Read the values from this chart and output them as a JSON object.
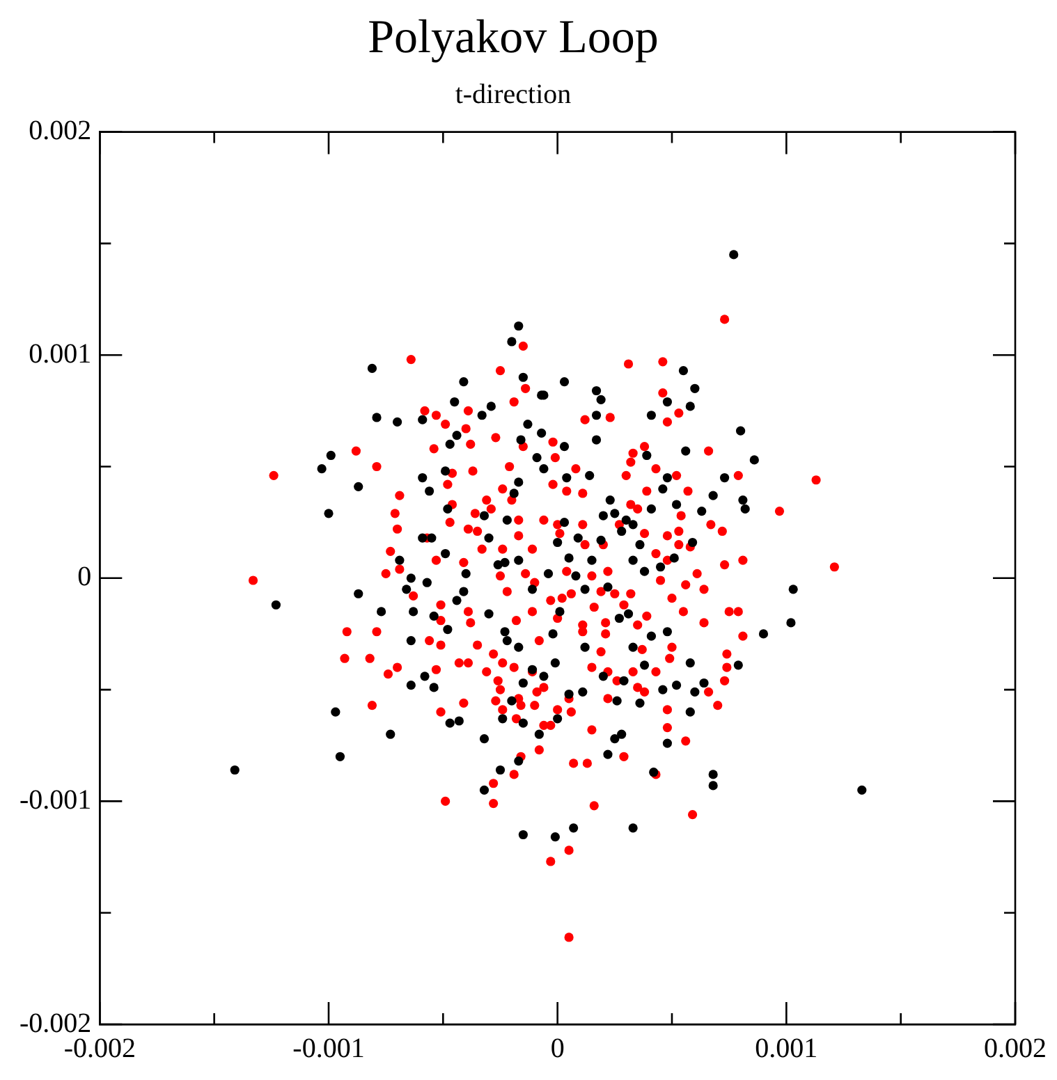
{
  "chart_data": {
    "type": "scatter",
    "title": "Polyakov Loop",
    "subtitle": "t-direction",
    "marker": "circle",
    "xlim": [
      -0.002,
      0.002
    ],
    "ylim": [
      -0.002,
      0.002
    ],
    "xticks": [
      -0.002,
      {
        "value": -0.0015,
        "label": null
      },
      -0.001,
      {
        "value": -0.0005,
        "label": null
      },
      0,
      {
        "value": 0.0005,
        "label": null
      },
      0.001,
      {
        "value": 0.0015,
        "label": null
      },
      0.002
    ],
    "yticks": [
      -0.002,
      {
        "value": -0.0015,
        "label": null
      },
      -0.001,
      {
        "value": -0.0005,
        "label": null
      },
      0,
      {
        "value": 0.0005,
        "label": null
      },
      0.001,
      {
        "value": 0.0015,
        "label": null
      },
      0.002
    ],
    "series": [
      {
        "color": "#000000",
        "x": [
          0.00077,
          -0.00017,
          -0.0002,
          -0.00081,
          -0.00041,
          -0.00015,
          -0.00045,
          -0.00029,
          -0.00033,
          -0.00059,
          -0.0007,
          -0.00079,
          -0.00099,
          -0.00103,
          -0.00087,
          -0.001,
          -0.00044,
          -0.00047,
          -0.00059,
          -0.00056,
          -0.00049,
          -0.00048,
          -7e-05,
          -6e-05,
          -0.00013,
          -0.00016,
          -7e-05,
          -9e-05,
          -6e-05,
          -0.00017,
          -0.00019,
          -0.00032,
          -0.00022,
          -0.0003,
          -0.00059,
          -0.00055,
          -0.00049,
          -0.00069,
          -0.00064,
          -0.0004,
          -0.00026,
          -0.00023,
          -0.00017,
          0.00055,
          0.0006,
          0.00058,
          3e-05,
          0.00017,
          0.00019,
          0.00017,
          0.00041,
          0.00048,
          0.0008,
          0.00086,
          0.00073,
          0.00068,
          0.00081,
          0.00082,
          0.00063,
          0.00056,
          0.00046,
          0.00048,
          0.00039,
          0.00052,
          0.00041,
          0.00023,
          0.00025,
          0.0002,
          0.0003,
          0.00033,
          0.00028,
          0.00019,
          0.00036,
          0.00059,
          0.00051,
          0.00045,
          0.00033,
          0.00038,
          0.00103,
          0.00017,
          3e-05,
          4e-05,
          0.00014,
          9e-05,
          5e-05,
          3e-05,
          0.00015,
          0.00102,
          0.0009,
          0.00079,
          0.00058,
          0.00048,
          0.00025,
          0.00028,
          0.00022,
          0.00033,
          7e-05,
          -1e-05,
          0.00042,
          0.00068,
          0.00068,
          0.00133,
          0.00046,
          0.00052,
          0.0006,
          0.00064,
          0.00058,
          0.00041,
          0.00048,
          0.00033,
          0.00038,
          0.00026,
          0.00036,
          0.00012,
          0.0002,
          0.00029,
          0.00011,
          5e-05,
          0,
          0.00027,
          0.00031,
          -0.00141,
          -0.00095,
          -0.00097,
          -0.00073,
          -0.00123,
          -0.00087,
          -0.00077,
          -0.00063,
          -0.00064,
          -0.00064,
          -0.00054,
          -0.00058,
          -0.00047,
          -0.00043,
          -0.00032,
          -0.00015,
          -0.00032,
          -0.00025,
          -0.00017,
          -0.00024,
          -8e-05,
          -0.0002,
          -0.00015,
          -0.00015,
          -0.00011,
          -6e-05,
          -0.00017,
          -0.00022,
          -0.00023,
          -0.0003,
          -0.00048,
          -0.00054,
          -0.00041,
          -0.00044,
          -0.00066,
          -0.00057,
          -1e-05,
          -2e-05,
          1e-05,
          -4e-05,
          -0.00011,
          0.00012,
          0.00022,
          8e-05,
          0
        ],
        "values": [
          0.00145,
          0.00113,
          0.00106,
          0.00094,
          0.00088,
          0.0009,
          0.00079,
          0.00077,
          0.00073,
          0.00071,
          0.0007,
          0.00072,
          0.00055,
          0.00049,
          0.00041,
          0.00029,
          0.00064,
          0.0006,
          0.00045,
          0.00039,
          0.00048,
          0.00031,
          0.00082,
          0.00082,
          0.00069,
          0.00062,
          0.00065,
          0.00054,
          0.00049,
          0.00043,
          0.00038,
          0.00028,
          0.00026,
          0.00018,
          0.00018,
          0.00018,
          0.00011,
          8e-05,
          0,
          2e-05,
          6e-05,
          7e-05,
          8e-05,
          0.00093,
          0.00085,
          0.00077,
          0.00088,
          0.00084,
          0.0008,
          0.00073,
          0.00073,
          0.00079,
          0.00066,
          0.00053,
          0.00045,
          0.00037,
          0.00035,
          0.00031,
          0.0003,
          0.00057,
          0.0004,
          0.00045,
          0.00055,
          0.00033,
          0.00031,
          0.00035,
          0.00029,
          0.00028,
          0.00026,
          0.00024,
          0.00021,
          0.00017,
          0.00015,
          0.00016,
          9e-05,
          5e-05,
          8e-05,
          3e-05,
          -5e-05,
          0.00062,
          0.00059,
          0.00045,
          0.00046,
          0.00018,
          9e-05,
          0.00025,
          8e-05,
          -0.0002,
          -0.00025,
          -0.00039,
          -0.0006,
          -0.00074,
          -0.00072,
          -0.0007,
          -0.00079,
          -0.00112,
          -0.00112,
          -0.00116,
          -0.00087,
          -0.00088,
          -0.00093,
          -0.00095,
          -0.0005,
          -0.00048,
          -0.00051,
          -0.00047,
          -0.00038,
          -0.00026,
          -0.00024,
          -0.00031,
          -0.00039,
          -0.00055,
          -0.00056,
          -0.00031,
          -0.00044,
          -0.00046,
          -0.00051,
          -0.00052,
          -0.00063,
          -0.00018,
          -0.00016,
          -0.00086,
          -0.0008,
          -0.0006,
          -0.0007,
          -0.00012,
          -7e-05,
          -0.00015,
          -0.00015,
          -0.00028,
          -0.00048,
          -0.00049,
          -0.00044,
          -0.00065,
          -0.00064,
          -0.00072,
          -0.00115,
          -0.00095,
          -0.00086,
          -0.00082,
          -0.00063,
          -0.0007,
          -0.00055,
          -0.00065,
          -0.00047,
          -0.00041,
          -0.00044,
          -0.00031,
          -0.00028,
          -0.00024,
          -0.00016,
          -0.00023,
          -0.00017,
          -6e-05,
          -0.0001,
          -5e-05,
          -2e-05,
          -0.00038,
          -0.00025,
          -0.00015,
          2e-05,
          -5e-05,
          -5e-05,
          -4e-05,
          1e-05,
          0.00016
        ]
      },
      {
        "color": "#ff0000",
        "x": [
          -0.00064,
          -0.00015,
          -0.00025,
          -0.00014,
          -0.00019,
          -0.00058,
          -0.00053,
          -0.00039,
          -0.00049,
          -0.0004,
          -0.00054,
          -0.00038,
          -0.00027,
          -0.00015,
          -2e-05,
          -0.00088,
          -0.00079,
          -0.00124,
          -0.00046,
          -0.00037,
          -0.00021,
          -1e-05,
          -0.00048,
          -0.00069,
          -0.00071,
          -0.0007,
          -0.00046,
          -0.00047,
          -0.00031,
          -0.00036,
          -0.00029,
          -0.00024,
          -0.0002,
          -2e-05,
          -0.00017,
          -0.00017,
          -6e-05,
          -0.00039,
          -0.00035,
          -0.00057,
          -0.00073,
          -0.00069,
          -0.00075,
          -0.00053,
          -0.00041,
          -0.00033,
          -0.00024,
          -0.00011,
          -0.00025,
          -0.00133,
          -0.00014,
          0.00073,
          0.00031,
          0.00046,
          0.00046,
          0.00053,
          0.00048,
          0.00012,
          0.00023,
          0.00033,
          0.00032,
          0.00038,
          0.00066,
          0.00079,
          0.00113,
          0.00097,
          0.00121,
          0.00043,
          0.00052,
          0.0003,
          8e-05,
          4e-05,
          0.00011,
          0.00039,
          0.00057,
          0.00032,
          0.00035,
          0.00054,
          0.00067,
          0.00072,
          0.00048,
          0.00053,
          0.00038,
          0.00027,
          0.0002,
          0.00011,
          0.00012,
          0,
          1e-05,
          0.00043,
          0.00053,
          0.00058,
          0.00048,
          0.00073,
          0.00081,
          0.00061,
          0.00022,
          0.00015,
          4e-05,
          -0.00092,
          -0.00093,
          -0.00079,
          -0.00082,
          -0.00074,
          -0.0007,
          -0.00081,
          -0.00049,
          -0.00051,
          -0.00041,
          -0.00053,
          -0.00043,
          -0.00039,
          -0.00056,
          -0.00051,
          -0.00051,
          -0.00063,
          -0.00051,
          -0.00039,
          -0.00038,
          -0.00035,
          -0.00031,
          -0.00028,
          -0.00026,
          -0.00025,
          -0.00027,
          -0.00024,
          -0.00024,
          -0.00018,
          -0.00016,
          -0.00017,
          -0.00019,
          -0.0001,
          -9e-05,
          -6e-05,
          -0.00011,
          -8e-05,
          -0.00011,
          -0.00018,
          -0.00022,
          -0.0001,
          -3e-05,
          0,
          0,
          -6e-05,
          -3e-05,
          -8e-05,
          -0.00016,
          -0.00019,
          -0.00028,
          -0.00028,
          -3e-05,
          0.00045,
          0.00056,
          0.00064,
          0.0005,
          0.00055,
          0.00075,
          0.00079,
          0.00081,
          0.00064,
          0.00039,
          0.00035,
          0.00029,
          0.00032,
          0.00025,
          0.00019,
          0.00016,
          0.00021,
          0.00021,
          0.00019,
          0.00011,
          0.00011,
          6e-05,
          2e-05,
          0.00015,
          0.00022,
          0.00026,
          0.00033,
          0.00037,
          0.00043,
          0.00035,
          0.00038,
          0.00022,
          0.0005,
          0.00049,
          0.00074,
          0.00074,
          0.00073,
          0.00066,
          0.0007,
          0.00048,
          0.00048,
          0.00056,
          0.00015,
          0.00029,
          7e-05,
          0.00013,
          0.00043,
          0.00016,
          0.00059,
          5e-05,
          5e-05,
          5e-05,
          6e-05
        ],
        "values": [
          0.00098,
          0.00104,
          0.00093,
          0.00085,
          0.00079,
          0.00075,
          0.00073,
          0.00075,
          0.00069,
          0.00067,
          0.00058,
          0.0006,
          0.00063,
          0.00059,
          0.00061,
          0.00057,
          0.0005,
          0.00046,
          0.00047,
          0.00048,
          0.0005,
          0.00054,
          0.00042,
          0.00037,
          0.00029,
          0.00022,
          0.00033,
          0.00025,
          0.00035,
          0.00029,
          0.00031,
          0.0004,
          0.00035,
          0.00042,
          0.00026,
          0.00019,
          0.00026,
          0.00022,
          0.00021,
          0.00018,
          0.00012,
          4e-05,
          2e-05,
          8e-05,
          7e-05,
          0.00013,
          0.00013,
          0.00013,
          1e-05,
          -1e-05,
          2e-05,
          0.00116,
          0.00096,
          0.00097,
          0.00083,
          0.00074,
          0.0007,
          0.00071,
          0.00072,
          0.00056,
          0.00052,
          0.00059,
          0.00057,
          0.00046,
          0.00044,
          0.0003,
          5e-05,
          0.00049,
          0.00046,
          0.00046,
          0.00049,
          0.00039,
          0.00038,
          0.00039,
          0.00039,
          0.00033,
          0.00031,
          0.00028,
          0.00024,
          0.00021,
          0.00019,
          0.00021,
          0.0002,
          0.00024,
          0.00015,
          0.00024,
          0.00015,
          0.00024,
          0.0002,
          0.00011,
          0.00015,
          0.00014,
          8e-05,
          6e-05,
          8e-05,
          2e-05,
          3e-05,
          1e-05,
          3e-05,
          -0.00024,
          -0.00036,
          -0.00024,
          -0.00036,
          -0.00043,
          -0.0004,
          -0.00057,
          -0.001,
          -0.0006,
          -0.00056,
          -0.00041,
          -0.00038,
          -0.00038,
          -0.00028,
          -0.0003,
          -0.00019,
          -8e-05,
          -0.00012,
          -0.00015,
          -0.0002,
          -0.0003,
          -0.00042,
          -0.00034,
          -0.00046,
          -0.0005,
          -0.00055,
          -0.00059,
          -0.00038,
          -0.00063,
          -0.00057,
          -0.00054,
          -0.0004,
          -0.00057,
          -0.00051,
          -0.00049,
          -0.00042,
          -0.00028,
          -0.00015,
          -0.00019,
          -6e-05,
          -2e-05,
          -0.0001,
          -0.00018,
          -0.00059,
          -0.00066,
          -0.00066,
          -0.00077,
          -0.0008,
          -0.00088,
          -0.00092,
          -0.00101,
          -0.00127,
          -1e-05,
          -3e-05,
          -5e-05,
          -9e-05,
          -0.00015,
          -0.00015,
          -0.00015,
          -0.00026,
          -0.0002,
          -0.00017,
          -0.00021,
          -0.00012,
          -7e-05,
          -7e-05,
          -6e-05,
          -0.00013,
          -0.0002,
          -0.00025,
          -0.00033,
          -0.00021,
          -0.00024,
          -7e-05,
          -9e-05,
          -0.0004,
          -0.00042,
          -0.00046,
          -0.00042,
          -0.00032,
          -0.00042,
          -0.00049,
          -0.00051,
          -0.00054,
          -0.00031,
          -0.00036,
          -0.00034,
          -0.0004,
          -0.00046,
          -0.00051,
          -0.00057,
          -0.00059,
          -0.00067,
          -0.00073,
          -0.00068,
          -0.0008,
          -0.00083,
          -0.00083,
          -0.00088,
          -0.00102,
          -0.00106,
          -0.00122,
          -0.00161,
          -0.00054,
          -0.0006
        ]
      }
    ]
  }
}
